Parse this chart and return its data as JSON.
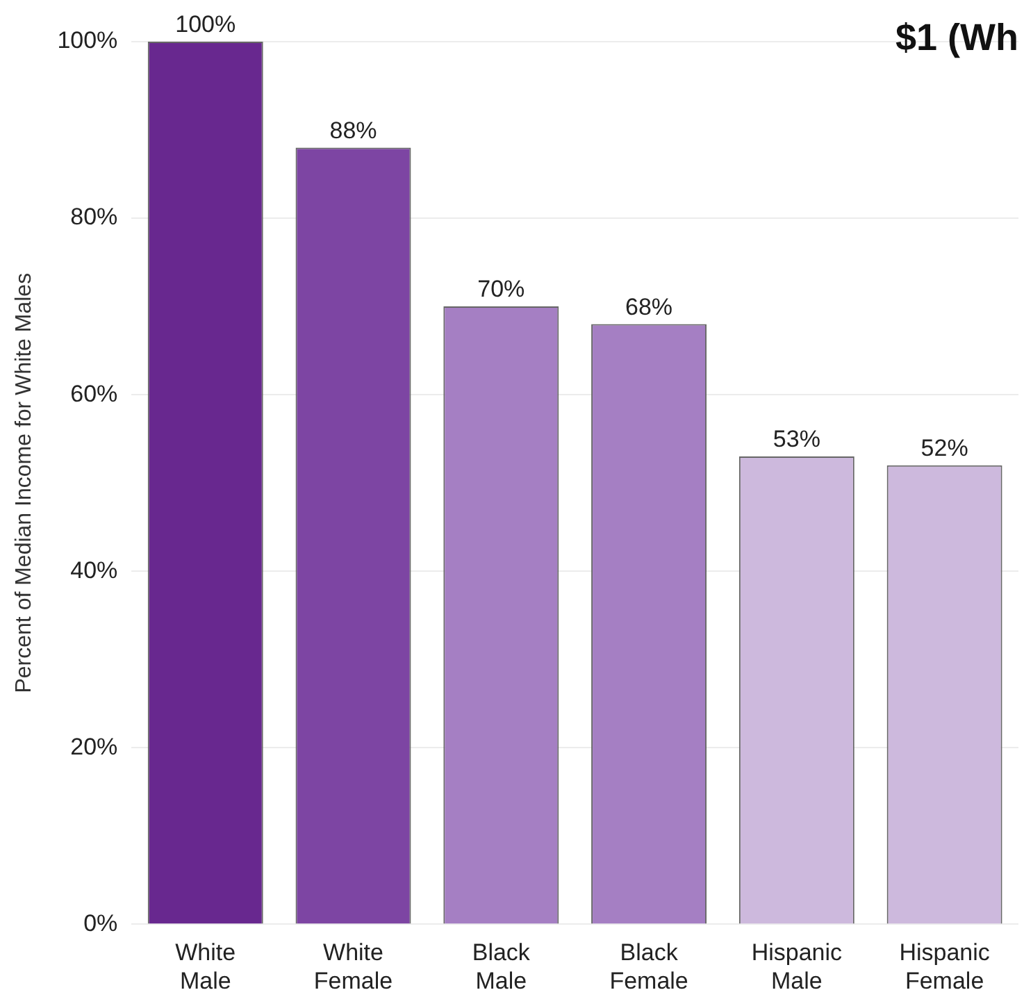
{
  "chart_data": {
    "type": "bar",
    "title": "$1 (Wh",
    "ylabel": "Percent of Median Income for White Males",
    "categories": [
      "White Male",
      "White Female",
      "Black Male",
      "Black Female",
      "Hispanic Male",
      "Hispanic Female"
    ],
    "values": [
      100,
      88,
      70,
      68,
      53,
      52
    ],
    "colors": [
      "#68288f",
      "#7d45a3",
      "#a57fc3",
      "#a57fc3",
      "#cdb9dd",
      "#cdb9dd"
    ],
    "value_labels": [
      "100%",
      "88%",
      "70%",
      "68%",
      "53%",
      "52%"
    ],
    "ylim": [
      0,
      100
    ],
    "yticks": [
      {
        "value": 0,
        "label": "0%"
      },
      {
        "value": 20,
        "label": "20%"
      },
      {
        "value": 40,
        "label": "40%"
      },
      {
        "value": 60,
        "label": "60%"
      },
      {
        "value": 80,
        "label": "80%"
      },
      {
        "value": 100,
        "label": "100%"
      }
    ],
    "grid": "y",
    "legend": false
  }
}
